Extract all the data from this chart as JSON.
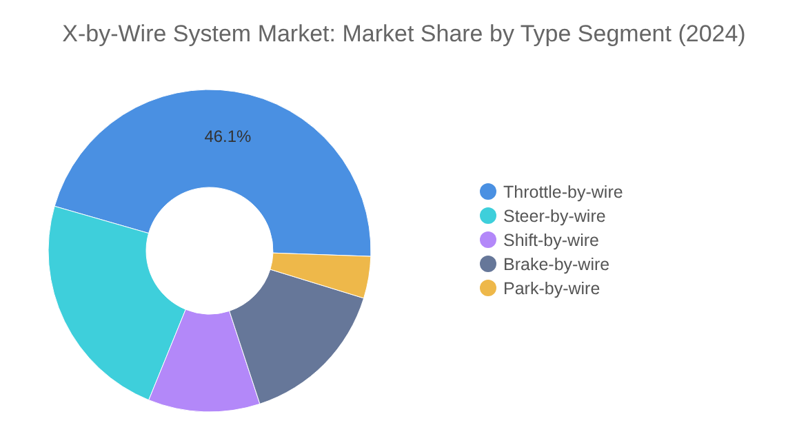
{
  "chart_data": {
    "type": "donut",
    "title": "X-by-Wire System Market: Market Share by Type Segment (2024)",
    "categories": [
      "Throttle-by-wire",
      "Steer-by-wire",
      "Shift-by-wire",
      "Brake-by-wire",
      "Park-by-wire"
    ],
    "values": [
      46.1,
      23.3,
      11.2,
      15.2,
      4.2
    ],
    "colors": [
      "#4a90e2",
      "#3ecfdb",
      "#b388f9",
      "#667799",
      "#eeb84a"
    ],
    "value_labels": [
      "46.1%",
      null,
      null,
      null,
      null
    ],
    "legend": "right"
  }
}
